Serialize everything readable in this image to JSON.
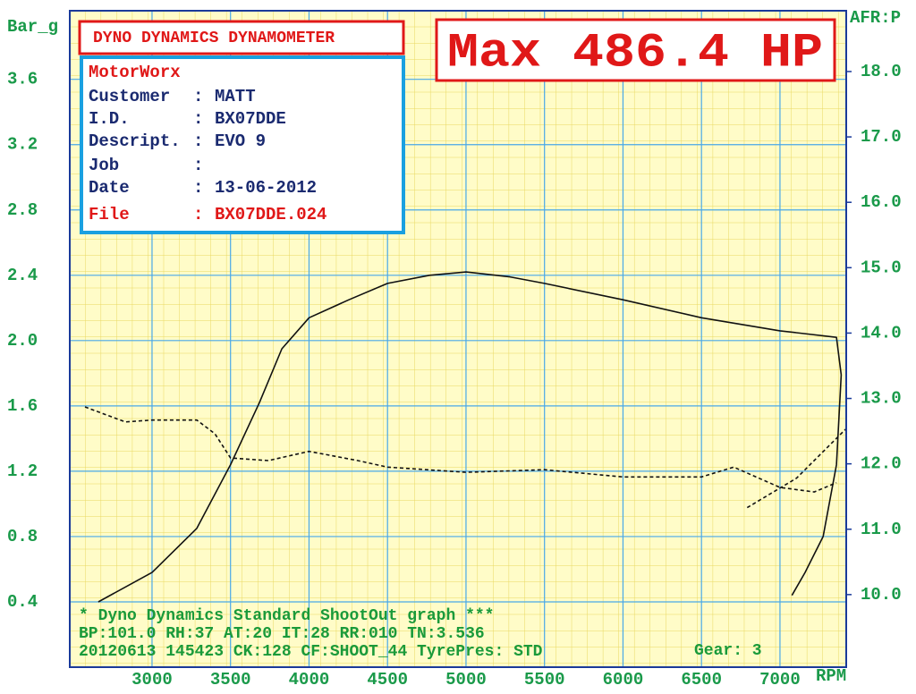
{
  "chart_data": {
    "type": "line",
    "y_label": "Bar_g",
    "y2_label": "AFR:P",
    "x_label": "RPM",
    "xlim": [
      2476,
      7422
    ],
    "xticks": [
      3000,
      3500,
      4000,
      4500,
      5000,
      5500,
      6000,
      6500,
      7000
    ],
    "ylim": [
      0,
      4.02
    ],
    "yticks": [
      0.4,
      0.8,
      1.2,
      1.6,
      {
        "value": 2,
        "label": "2.0"
      },
      2.4,
      2.8,
      3.2,
      3.6
    ],
    "y2lim": [
      8.89,
      18.93
    ],
    "y2ticks": [
      {
        "value": 10,
        "label": "10.0"
      },
      {
        "value": 11,
        "label": "11.0"
      },
      {
        "value": 12,
        "label": "12.0"
      },
      {
        "value": 13,
        "label": "13.0"
      },
      {
        "value": 14,
        "label": "14.0"
      },
      {
        "value": 15,
        "label": "15.0"
      },
      {
        "value": 16,
        "label": "16.0"
      },
      {
        "value": 17,
        "label": "17.0"
      },
      {
        "value": 18,
        "label": "18.0"
      }
    ],
    "grid": true,
    "series": [
      {
        "color": "#111111",
        "linestyle": "solid",
        "x": [
          2658,
          3000,
          3285,
          3500,
          3684,
          3827,
          4000,
          4254,
          4500,
          4768,
          5000,
          5280,
          5500,
          6000,
          6500,
          7000,
          7360,
          7390,
          7360,
          7275,
          7160,
          7076
        ],
        "values": [
          0.4,
          0.58,
          0.85,
          1.24,
          1.62,
          1.95,
          2.14,
          2.25,
          2.35,
          2.4,
          2.42,
          2.39,
          2.35,
          2.25,
          2.14,
          2.06,
          2.02,
          1.79,
          1.24,
          0.8,
          0.58,
          0.44
        ]
      },
      {
        "color": "#111111",
        "linestyle": "dashed",
        "axis": "y2",
        "x": [
          2573,
          2830,
          3000,
          3285,
          3400,
          3500,
          3741,
          4000,
          4311,
          4500,
          5000,
          5500,
          6000,
          6500,
          6705,
          7000,
          7218,
          7360,
          6791,
          6791,
          7105,
          7418
        ],
        "values": [
          12.87,
          12.64,
          12.67,
          12.67,
          12.46,
          12.09,
          12.05,
          12.19,
          12.05,
          11.95,
          11.87,
          11.91,
          11.8,
          11.8,
          11.95,
          11.64,
          11.57,
          11.71,
          null,
          11.33,
          11.78,
          12.53
        ]
      }
    ]
  },
  "header": {
    "machine": "DYNO DYNAMICS DYNAMOMETER",
    "max": "Max 486.4 HP"
  },
  "info": {
    "title": "MotorWorx",
    "rows": [
      [
        "Customer",
        ":",
        "MATT"
      ],
      [
        "I.D.",
        ":",
        "BX07DDE"
      ],
      [
        "Descript.",
        ":",
        "EVO 9"
      ],
      [
        "Job",
        ":"
      ],
      [
        "Date",
        ":",
        "13-06-2012"
      ],
      [
        "File",
        ":",
        "BX07DDE.024"
      ]
    ]
  },
  "footer": {
    "lines": [
      "* Dyno Dynamics Standard ShootOut graph ***",
      "BP:101.0 RH:37 AT:20 IT:28 RR:010 TN:3.536",
      "20120613 145423 CK:128 CF:SHOOT_44 TyrePres: STD"
    ],
    "gear": "Gear: 3"
  }
}
